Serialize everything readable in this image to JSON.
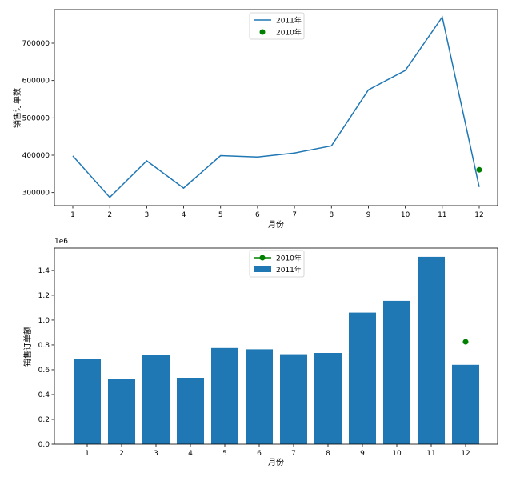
{
  "chart_data": [
    {
      "type": "line",
      "categories": [
        "1",
        "2",
        "3",
        "4",
        "5",
        "6",
        "7",
        "8",
        "9",
        "10",
        "11",
        "12"
      ],
      "series": [
        {
          "name": "2011年",
          "kind": "line",
          "color": "#1f77b4",
          "values": [
            398000,
            287000,
            385000,
            312000,
            399000,
            395000,
            406000,
            425000,
            575000,
            627000,
            770000,
            315000
          ]
        },
        {
          "name": "2010年",
          "kind": "point",
          "color": "#008000",
          "x": [
            "12"
          ],
          "values": [
            361000
          ]
        }
      ],
      "xlabel": "月份",
      "ylabel": "销售订单数",
      "ylim": [
        265000,
        790000
      ],
      "yticks": [
        "300000",
        "400000",
        "500000",
        "600000",
        "700000"
      ],
      "legend": "upper-center",
      "grid": false
    },
    {
      "type": "bar",
      "categories": [
        "1",
        "2",
        "3",
        "4",
        "5",
        "6",
        "7",
        "8",
        "9",
        "10",
        "11",
        "12"
      ],
      "series": [
        {
          "name": "2010年",
          "kind": "line-point",
          "color": "#008000",
          "x": [
            "12"
          ],
          "values": [
            0.825
          ]
        },
        {
          "name": "2011年",
          "kind": "bar",
          "color": "#1f77b4",
          "values": [
            0.69,
            0.525,
            0.72,
            0.535,
            0.775,
            0.765,
            0.725,
            0.735,
            1.06,
            1.155,
            1.51,
            0.64
          ]
        }
      ],
      "xlabel": "月份",
      "ylabel": "销售订单额",
      "scale_label": "1e6",
      "ylim": [
        0,
        1.58
      ],
      "yticks": [
        "0.0",
        "0.2",
        "0.4",
        "0.6",
        "0.8",
        "1.0",
        "1.2",
        "1.4"
      ],
      "legend": "upper-center",
      "grid": false
    }
  ]
}
